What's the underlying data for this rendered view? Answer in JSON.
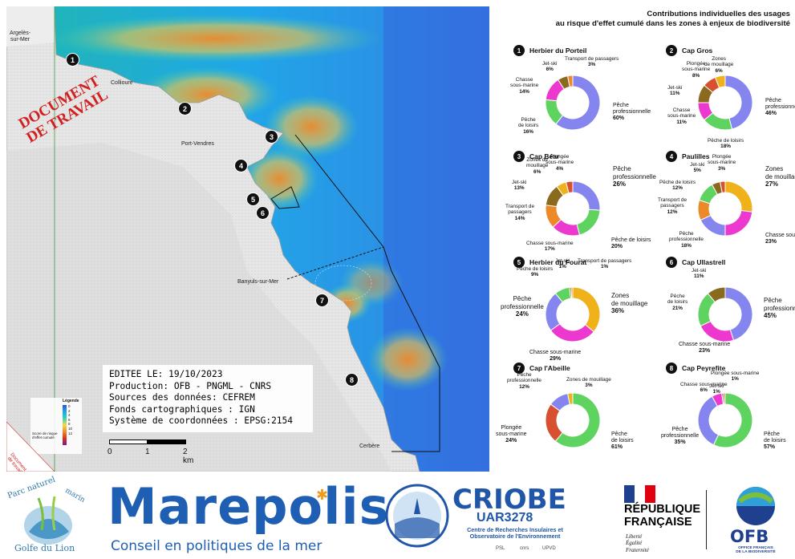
{
  "map": {
    "watermark": [
      "DOCUMENT",
      "DE TRAVAIL"
    ],
    "towns": [
      {
        "id": "argeles",
        "lines": [
          "Argelès-",
          "sur-Mer"
        ]
      },
      {
        "id": "collioure",
        "lines": [
          "Collioure"
        ]
      },
      {
        "id": "port-vendres",
        "lines": [
          "Port-Vendres"
        ]
      },
      {
        "id": "banyuls",
        "lines": [
          "Banyuls-sur-Mer"
        ]
      },
      {
        "id": "cerbere",
        "lines": [
          "Cerbère"
        ]
      }
    ],
    "site_numbers": [
      "1",
      "2",
      "3",
      "4",
      "5",
      "6",
      "7",
      "8"
    ],
    "info_box": [
      "EDITEE LE: 19/10/2023",
      "Production: OFB - PNGML - CNRS",
      "Sources des données: CEFREM",
      "Fonds cartographiques : IGN",
      "Système de coordonnées : EPSG:2154"
    ],
    "legend": {
      "title": "Légende",
      "caption": "Score de risque d'effet cumulé",
      "ticks": [
        "0",
        "2",
        "4",
        "6",
        "8",
        "10",
        "12"
      ]
    },
    "scalebar": {
      "labels": [
        "0",
        "1",
        "2 km"
      ]
    },
    "corner_note": [
      "Document",
      "de travail"
    ]
  },
  "panel": {
    "title_lines": [
      "Contributions individuelles des usages",
      "au risque d'effet cumulé dans les zones à enjeux de biodiversité"
    ]
  },
  "colors": {
    "peche_pro": "#8585f0",
    "peche_loisirs": "#5fd35f",
    "chasse": "#ec38cf",
    "jet_ski": "#8a6a1e",
    "transport": "#ec8a2a",
    "mouillage": "#efb21a",
    "plongee": "#d85030",
    "sea_deep": "#2f9fe0",
    "sea_mid": "#1fb8b0",
    "land": "#e9e9e9"
  },
  "chart_data": [
    {
      "type": "pie",
      "site": "1",
      "title": "Herbier du Porteil",
      "slices": [
        {
          "label": "Pêche professionnelle",
          "pct": 60,
          "color": "#8585f0"
        },
        {
          "label": "Pêche de loisirs",
          "pct": 16,
          "color": "#5fd35f"
        },
        {
          "label": "Chasse sous-marine",
          "pct": 14,
          "color": "#ec38cf"
        },
        {
          "label": "Jet-ski",
          "pct": 6,
          "color": "#8a6a1e"
        },
        {
          "label": "Transport de passagers",
          "pct": 3,
          "color": "#ec8a2a"
        }
      ]
    },
    {
      "type": "pie",
      "site": "2",
      "title": "Cap Gros",
      "slices": [
        {
          "label": "Pêche professionnelle",
          "pct": 46,
          "color": "#8585f0"
        },
        {
          "label": "Pêche de loisirs",
          "pct": 18,
          "color": "#5fd35f"
        },
        {
          "label": "Chasse sous-marine",
          "pct": 11,
          "color": "#ec38cf"
        },
        {
          "label": "Jet-ski",
          "pct": 11,
          "color": "#8a6a1e"
        },
        {
          "label": "Plongée sous-marine",
          "pct": 8,
          "color": "#d85030"
        },
        {
          "label": "Zones de mouillage",
          "pct": 6,
          "color": "#efb21a"
        }
      ]
    },
    {
      "type": "pie",
      "site": "3",
      "title": "Cap Béar",
      "slices": [
        {
          "label": "Pêche professionnelle",
          "pct": 26,
          "color": "#8585f0"
        },
        {
          "label": "Pêche de loisirs",
          "pct": 20,
          "color": "#5fd35f"
        },
        {
          "label": "Chasse sous-marine",
          "pct": 17,
          "color": "#ec38cf"
        },
        {
          "label": "Transport de passagers",
          "pct": 14,
          "color": "#ec8a2a"
        },
        {
          "label": "Jet-ski",
          "pct": 13,
          "color": "#8a6a1e"
        },
        {
          "label": "Zones de mouillage",
          "pct": 6,
          "color": "#efb21a"
        },
        {
          "label": "Plongée sous-marine",
          "pct": 4,
          "color": "#d85030"
        }
      ]
    },
    {
      "type": "pie",
      "site": "4",
      "title": "Paulilles",
      "slices": [
        {
          "label": "Zones de mouillage",
          "pct": 27,
          "color": "#efb21a"
        },
        {
          "label": "Chasse sous-marine",
          "pct": 23,
          "color": "#ec38cf"
        },
        {
          "label": "Pêche professionnelle",
          "pct": 18,
          "color": "#8585f0"
        },
        {
          "label": "Transport de passagers",
          "pct": 12,
          "color": "#ec8a2a"
        },
        {
          "label": "Pêche de loisirs",
          "pct": 12,
          "color": "#5fd35f"
        },
        {
          "label": "Jet-ski",
          "pct": 5,
          "color": "#8a6a1e"
        },
        {
          "label": "Plongée sous-marine",
          "pct": 3,
          "color": "#d85030"
        }
      ]
    },
    {
      "type": "pie",
      "site": "5",
      "title": "Herbier du Fourat",
      "slices": [
        {
          "label": "Zones de mouillage",
          "pct": 36,
          "color": "#efb21a"
        },
        {
          "label": "Chasse sous-marine",
          "pct": 29,
          "color": "#ec38cf"
        },
        {
          "label": "Pêche professionnelle",
          "pct": 24,
          "color": "#8585f0"
        },
        {
          "label": "Pêche de loisirs",
          "pct": 9,
          "color": "#5fd35f"
        },
        {
          "label": "Jet-ski",
          "pct": 1,
          "color": "#8a6a1e"
        },
        {
          "label": "Transport de passagers",
          "pct": 1,
          "color": "#ec8a2a"
        }
      ]
    },
    {
      "type": "pie",
      "site": "6",
      "title": "Cap Ullastrell",
      "slices": [
        {
          "label": "Pêche professionnelle",
          "pct": 45,
          "color": "#8585f0"
        },
        {
          "label": "Chasse sous-marine",
          "pct": 23,
          "color": "#ec38cf"
        },
        {
          "label": "Pêche de loisirs",
          "pct": 21,
          "color": "#5fd35f"
        },
        {
          "label": "Jet-ski",
          "pct": 11,
          "color": "#8a6a1e"
        }
      ]
    },
    {
      "type": "pie",
      "site": "7",
      "title": "Cap l'Abeille",
      "slices": [
        {
          "label": "Pêche de loisirs",
          "pct": 61,
          "color": "#5fd35f"
        },
        {
          "label": "Plongée sous-marine",
          "pct": 24,
          "color": "#d85030"
        },
        {
          "label": "Pêche professionnelle",
          "pct": 12,
          "color": "#8585f0"
        },
        {
          "label": "Zones de mouillage",
          "pct": 3,
          "color": "#efb21a"
        }
      ]
    },
    {
      "type": "pie",
      "site": "8",
      "title": "Cap Peyrefite",
      "slices": [
        {
          "label": "Pêche de loisirs",
          "pct": 57,
          "color": "#5fd35f"
        },
        {
          "label": "Pêche professionnelle",
          "pct": 35,
          "color": "#8585f0"
        },
        {
          "label": "Chasse sous-marine",
          "pct": 6,
          "color": "#ec38cf"
        },
        {
          "label": "Jet-ski",
          "pct": 1,
          "color": "#8a6a1e"
        },
        {
          "label": "Plongée sous-marine",
          "pct": 1,
          "color": "#d85030"
        }
      ]
    }
  ],
  "chart_labels": [
    [
      {
        "lines": [
          "Pêche",
          "professionnelle",
          "60%"
        ],
        "size": "mid"
      },
      {
        "lines": [
          "Pêche",
          "de loisirs",
          "16%"
        ],
        "size": "small"
      },
      {
        "lines": [
          "Chasse",
          "sous-marine",
          "14%"
        ],
        "size": "small"
      },
      {
        "lines": [
          "Jet-ski",
          "6%"
        ],
        "size": "small"
      },
      {
        "lines": [
          "Transport de passagers",
          "3%"
        ],
        "size": "small"
      }
    ],
    [
      {
        "lines": [
          "Pêche",
          "professionnelle",
          "46%"
        ],
        "size": "mid"
      },
      {
        "lines": [
          "Pêche de loisirs",
          "18%"
        ],
        "size": "small"
      },
      {
        "lines": [
          "Chasse",
          "sous-marine",
          "11%"
        ],
        "size": "small"
      },
      {
        "lines": [
          "Jet-ski",
          "11%"
        ],
        "size": "small"
      },
      {
        "lines": [
          "Plongée",
          "sous-marine",
          "8%"
        ],
        "size": "small"
      },
      {
        "lines": [
          "Zones",
          "de mouillage",
          "6%"
        ],
        "size": "small"
      }
    ],
    [
      {
        "lines": [
          "Pêche",
          "professionnelle",
          "26%"
        ],
        "size": "big"
      },
      {
        "lines": [
          "Pêche de loisirs",
          "20%"
        ],
        "size": "mid"
      },
      {
        "lines": [
          "Chasse sous-marine",
          "17%"
        ],
        "size": "small"
      },
      {
        "lines": [
          "Transport de",
          "passagers",
          "14%"
        ],
        "size": "small"
      },
      {
        "lines": [
          "Jet-ski",
          "13%"
        ],
        "size": "small"
      },
      {
        "lines": [
          "Zones de",
          "mouillage",
          "6%"
        ],
        "size": "small"
      },
      {
        "lines": [
          "Plongée",
          "sous-marine",
          "4%"
        ],
        "size": "small"
      }
    ],
    [
      {
        "lines": [
          "Zones",
          "de mouillage",
          "27%"
        ],
        "size": "big"
      },
      {
        "lines": [
          "Chasse sous-marine",
          "23%"
        ],
        "size": "mid"
      },
      {
        "lines": [
          "Pêche",
          "professionnelle",
          "18%"
        ],
        "size": "small"
      },
      {
        "lines": [
          "Transport de",
          "passagers",
          "12%"
        ],
        "size": "small"
      },
      {
        "lines": [
          "Pêche de loisirs",
          "12%"
        ],
        "size": "small"
      },
      {
        "lines": [
          "Jet-ski",
          "5%"
        ],
        "size": "small"
      },
      {
        "lines": [
          "Plongée",
          "sous-marine",
          "3%"
        ],
        "size": "small"
      }
    ],
    [
      {
        "lines": [
          "Zones",
          "de mouillage",
          "36%"
        ],
        "size": "big"
      },
      {
        "lines": [
          "Chasse sous-marine",
          "29%"
        ],
        "size": "mid"
      },
      {
        "lines": [
          "Pêche",
          "professionnelle",
          "24%"
        ],
        "size": "big"
      },
      {
        "lines": [
          "Pêche de loisirs",
          "9%"
        ],
        "size": "small"
      },
      {
        "lines": [
          "Jet-ski",
          "1%"
        ],
        "size": "small"
      },
      {
        "lines": [
          "Transport de passagers",
          "1%"
        ],
        "size": "small"
      }
    ],
    [
      {
        "lines": [
          "Pêche",
          "professionnelle",
          "45%"
        ],
        "size": "big"
      },
      {
        "lines": [
          "Chasse sous-marine",
          "23%"
        ],
        "size": "mid"
      },
      {
        "lines": [
          "Pêche",
          "de loisirs",
          "21%"
        ],
        "size": "small"
      },
      {
        "lines": [
          "Jet-ski",
          "11%"
        ],
        "size": "small"
      }
    ],
    [
      {
        "lines": [
          "Pêche",
          "de loisirs",
          "61%"
        ],
        "size": "mid"
      },
      {
        "lines": [
          "Plongée",
          "sous-marine",
          "24%"
        ],
        "size": "mid"
      },
      {
        "lines": [
          "Pêche",
          "professionnelle",
          "12%"
        ],
        "size": "small"
      },
      {
        "lines": [
          "Zones de mouillage",
          "3%"
        ],
        "size": "small"
      }
    ],
    [
      {
        "lines": [
          "Pêche",
          "de loisirs",
          "57%"
        ],
        "size": "mid"
      },
      {
        "lines": [
          "Pêche",
          "professionnelle",
          "35%"
        ],
        "size": "mid"
      },
      {
        "lines": [
          "Chasse sous-marine",
          "6%"
        ],
        "size": "small"
      },
      {
        "lines": [
          "Jet-ski",
          "1%"
        ],
        "size": "small"
      },
      {
        "lines": [
          "Plongée sous-marine",
          "1%"
        ],
        "size": "small"
      }
    ]
  ],
  "footer": {
    "pnm": {
      "line1": "Parc naturel",
      "line2": "marin",
      "line3": "Golfe du Lion"
    },
    "marepolis": {
      "title": "Marepolis",
      "subtitle": "Conseil en politiques de la mer"
    },
    "criobe": {
      "title": "CRIOBE",
      "uar": "UAR3278",
      "desc": [
        "Centre de Recherches Insulaires et",
        "Observatoire de l'Environnement"
      ],
      "partners": [
        "PSL",
        "cnrs",
        "UPVD"
      ]
    },
    "republique": {
      "title": [
        "RÉPUBLIQUE",
        "FRANÇAISE"
      ],
      "motto": [
        "Liberté",
        "Égalité",
        "Fraternité"
      ]
    },
    "ofb": {
      "title": "OFB",
      "subtitle": [
        "OFFICE FRANÇAIS",
        "DE LA BIODIVERSITÉ"
      ]
    }
  }
}
